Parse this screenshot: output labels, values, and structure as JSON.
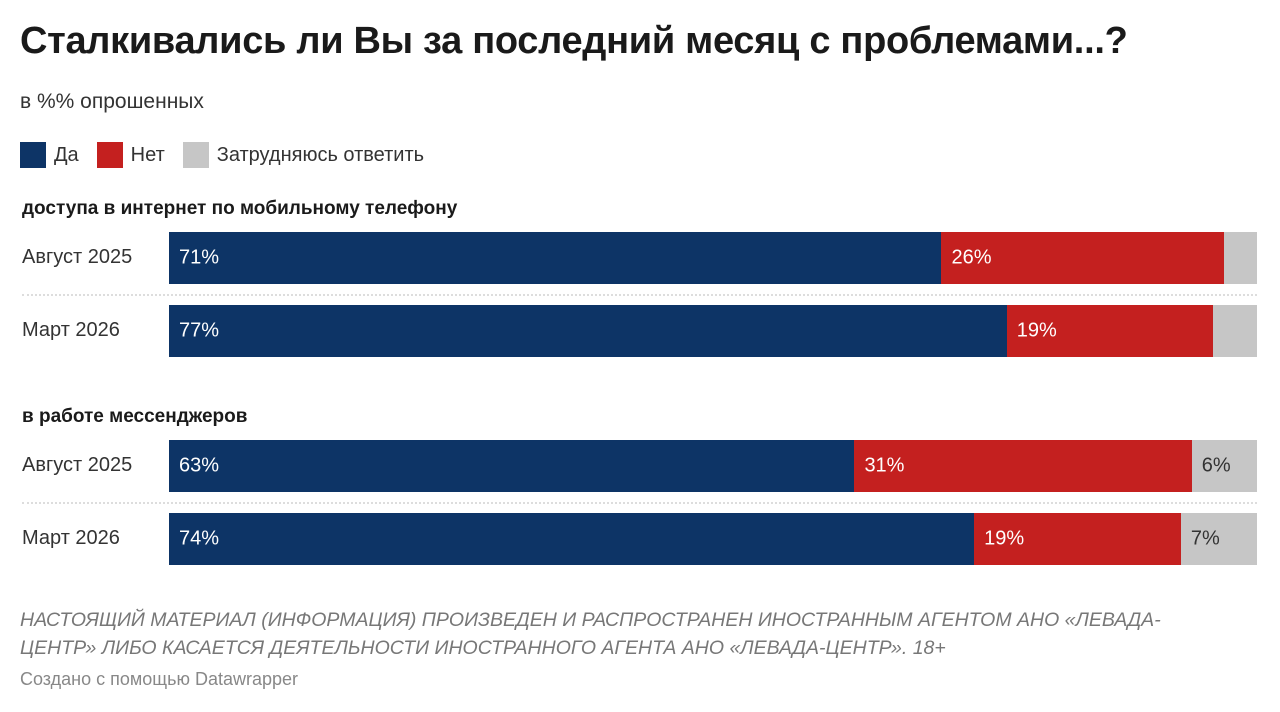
{
  "chart_data": {
    "type": "bar",
    "orientation": "horizontal-stacked",
    "title": "Сталкивались ли Вы за последний месяц с проблемами...?",
    "subtitle": "в %% опрошенных",
    "legend": [
      {
        "name": "Да",
        "color": "#0d3466"
      },
      {
        "name": "Нет",
        "color": "#c4201f"
      },
      {
        "name": "Затрудняюсь ответить",
        "color": "#c6c6c6"
      }
    ],
    "groups": [
      {
        "title": "доступа в интернет по мобильному телефону",
        "rows": [
          {
            "label": "Август 2025",
            "values": [
              71,
              26,
              3
            ],
            "labels": [
              "71%",
              "26%",
              ""
            ]
          },
          {
            "label": "Март 2026",
            "values": [
              77,
              19,
              4
            ],
            "labels": [
              "77%",
              "19%",
              ""
            ]
          }
        ]
      },
      {
        "title": "в работе мессенджеров",
        "rows": [
          {
            "label": "Август 2025",
            "values": [
              63,
              31,
              6
            ],
            "labels": [
              "63%",
              "31%",
              "6%"
            ]
          },
          {
            "label": "Март 2026",
            "values": [
              74,
              19,
              7
            ],
            "labels": [
              "74%",
              "19%",
              "7%"
            ]
          }
        ]
      }
    ],
    "xlim": [
      0,
      100
    ]
  },
  "footer": {
    "note": "НАСТОЯЩИЙ МАТЕРИАЛ (ИНФОРМАЦИЯ) ПРОИЗВЕДЕН И РАСПРОСТРАНЕН ИНОСТРАННЫМ АГЕНТОМ АНО «ЛЕВАДА-ЦЕНТР» ЛИБО КАСАЕТСЯ ДЕЯТЕЛЬНОСТИ ИНОСТРАННОГО АГЕНТА АНО «ЛЕВАДА-ЦЕНТР». 18+",
    "credit": "Создано с помощью Datawrapper"
  }
}
